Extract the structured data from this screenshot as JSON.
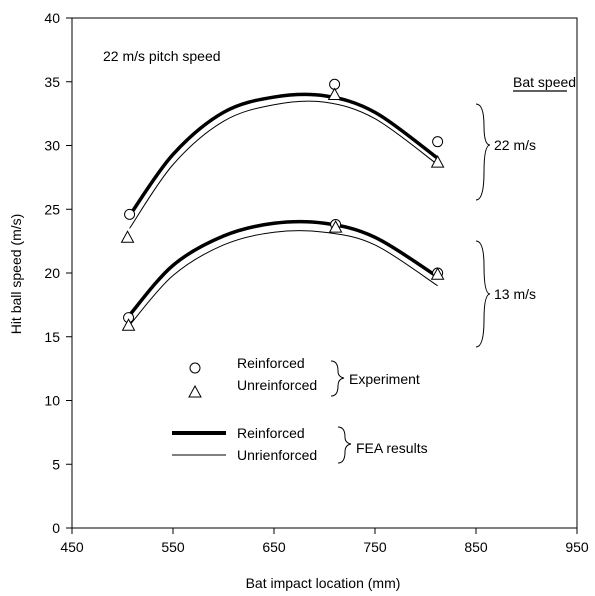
{
  "chart_data": {
    "type": "scatter",
    "title": "",
    "xlabel": "Bat impact location (mm)",
    "ylabel": "Hit ball speed (m/s)",
    "xlim": [
      450,
      950
    ],
    "ylim": [
      0,
      40
    ],
    "xticks": [
      450,
      550,
      650,
      750,
      850,
      950
    ],
    "yticks": [
      0,
      5,
      10,
      15,
      20,
      25,
      30,
      35,
      40
    ],
    "grid": false,
    "annotations": {
      "pitch_speed": "22 m/s pitch speed",
      "bat_speed_header": "Bat speed",
      "bat_22": "22 m/s",
      "bat_13": "13 m/s",
      "experiment": "Experiment",
      "fea": "FEA results"
    },
    "legend": {
      "placement": "bottom-center",
      "experiment_entries": [
        "Reinforced",
        "Unreinforced"
      ],
      "fea_entries": [
        "Reinforced",
        "Unrienforced"
      ]
    },
    "series": [
      {
        "group": "22 m/s",
        "kind": "experiment",
        "marker": "circle",
        "x": [
          507,
          710,
          812
        ],
        "y": [
          24.6,
          34.8,
          30.3
        ]
      },
      {
        "group": "22 m/s",
        "kind": "experiment",
        "marker": "triangle",
        "x": [
          505,
          710,
          812
        ],
        "y": [
          22.8,
          34.0,
          28.7
        ]
      },
      {
        "group": "22 m/s",
        "kind": "fea",
        "style": "thick",
        "x": [
          507,
          550,
          600,
          650,
          700,
          750,
          812
        ],
        "y": [
          24.5,
          29.3,
          32.6,
          33.8,
          33.9,
          32.6,
          29.0
        ]
      },
      {
        "group": "22 m/s",
        "kind": "fea",
        "style": "thin",
        "x": [
          507,
          550,
          600,
          650,
          700,
          750,
          812
        ],
        "y": [
          23.5,
          28.5,
          31.9,
          33.2,
          33.4,
          32.1,
          28.5
        ]
      },
      {
        "group": "13 m/s",
        "kind": "experiment",
        "marker": "circle",
        "x": [
          506,
          711,
          812
        ],
        "y": [
          16.5,
          23.8,
          20.0
        ]
      },
      {
        "group": "13 m/s",
        "kind": "experiment",
        "marker": "triangle",
        "x": [
          506,
          711,
          812
        ],
        "y": [
          15.9,
          23.6,
          19.9
        ]
      },
      {
        "group": "13 m/s",
        "kind": "fea",
        "style": "thick",
        "x": [
          507,
          550,
          600,
          650,
          700,
          750,
          812
        ],
        "y": [
          16.7,
          20.6,
          22.9,
          23.9,
          23.9,
          22.8,
          19.7
        ]
      },
      {
        "group": "13 m/s",
        "kind": "fea",
        "style": "thin",
        "x": [
          507,
          550,
          600,
          650,
          700,
          750,
          812
        ],
        "y": [
          15.9,
          19.8,
          22.2,
          23.2,
          23.2,
          22.2,
          19.0
        ]
      }
    ]
  }
}
